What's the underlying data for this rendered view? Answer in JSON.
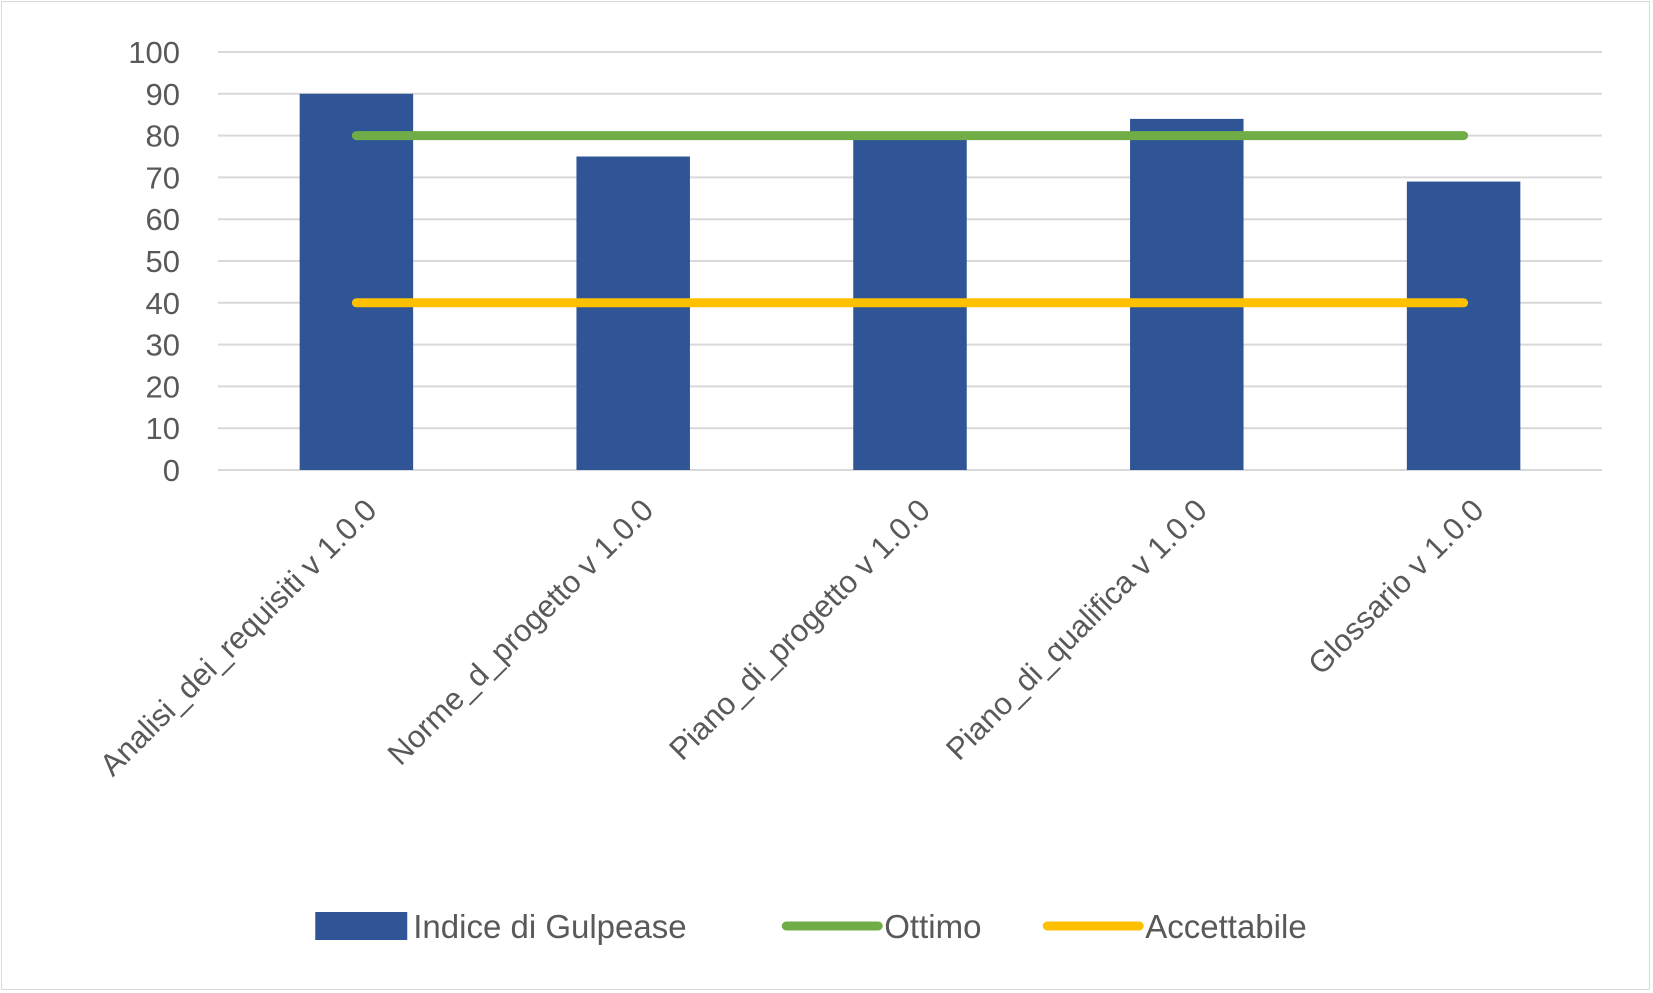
{
  "chart_data": {
    "type": "bar",
    "title": "",
    "xlabel": "",
    "ylabel": "",
    "categories": [
      "Analisi_dei_requisiti v 1.0.0",
      "Norme_d_progetto v 1.0.0",
      "Piano_di_progetto v 1.0.0",
      "Piano_di_qualifica v 1.0.0",
      "Glossario v 1.0.0"
    ],
    "series": [
      {
        "name": "Indice di Gulpease",
        "kind": "bar",
        "color": "#2F5597",
        "values": [
          90,
          75,
          80,
          84,
          69
        ]
      },
      {
        "name": "Ottimo",
        "kind": "line",
        "color": "#70AD47",
        "values": [
          80,
          80,
          80,
          80,
          80
        ]
      },
      {
        "name": "Accettabile",
        "kind": "line",
        "color": "#FFC000",
        "values": [
          40,
          40,
          40,
          40,
          40
        ]
      }
    ],
    "ylim": [
      0,
      100
    ],
    "yticks": [
      0,
      10,
      20,
      30,
      40,
      50,
      60,
      70,
      80,
      90,
      100
    ],
    "grid": true,
    "legend_position": "bottom"
  }
}
